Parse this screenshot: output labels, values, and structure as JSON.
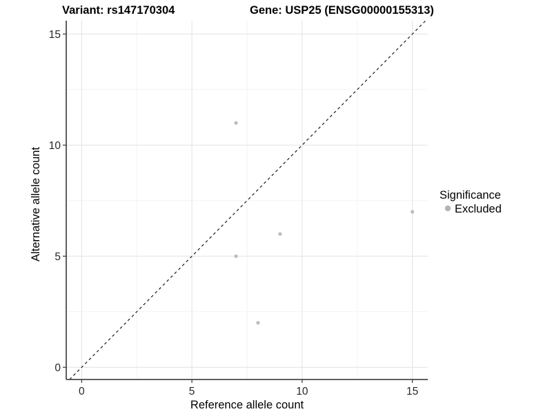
{
  "chart_data": {
    "type": "scatter",
    "title_left": "Variant: rs147170304",
    "title_right": "Gene: USP25 (ENSG00000155313)",
    "xlabel": "Reference allele count",
    "ylabel": "Alternative allele count",
    "xlim": [
      -0.7,
      15.7
    ],
    "ylim": [
      -0.55,
      15.6
    ],
    "x_major_ticks": [
      0,
      5,
      10,
      15
    ],
    "x_minor_ticks": [
      2.5,
      7.5,
      12.5
    ],
    "y_major_ticks": [
      0,
      5,
      10,
      15
    ],
    "y_minor_ticks": [
      2.5,
      7.5,
      12.5
    ],
    "grid": "major+minor",
    "reference_line": {
      "kind": "identity y=x",
      "style": "dashed",
      "color": "#1a1a1a"
    },
    "series": [
      {
        "name": "Excluded",
        "marker": "circle",
        "color": "#bcbcbc",
        "points": [
          {
            "x": 7,
            "y": 11
          },
          {
            "x": 7,
            "y": 5
          },
          {
            "x": 8,
            "y": 2
          },
          {
            "x": 9,
            "y": 6
          },
          {
            "x": 15,
            "y": 7
          }
        ]
      }
    ],
    "legend": {
      "title": "Significance",
      "position": "right",
      "items": [
        {
          "label": "Excluded",
          "color": "#b4b4b4"
        }
      ]
    },
    "style": {
      "grid_major_color": "#e4e4e4",
      "grid_minor_color": "#f1f1f1",
      "axis_line_color": "#4a4a4a",
      "tick_mark_color": "#333333",
      "panel_background": "#ffffff"
    }
  }
}
